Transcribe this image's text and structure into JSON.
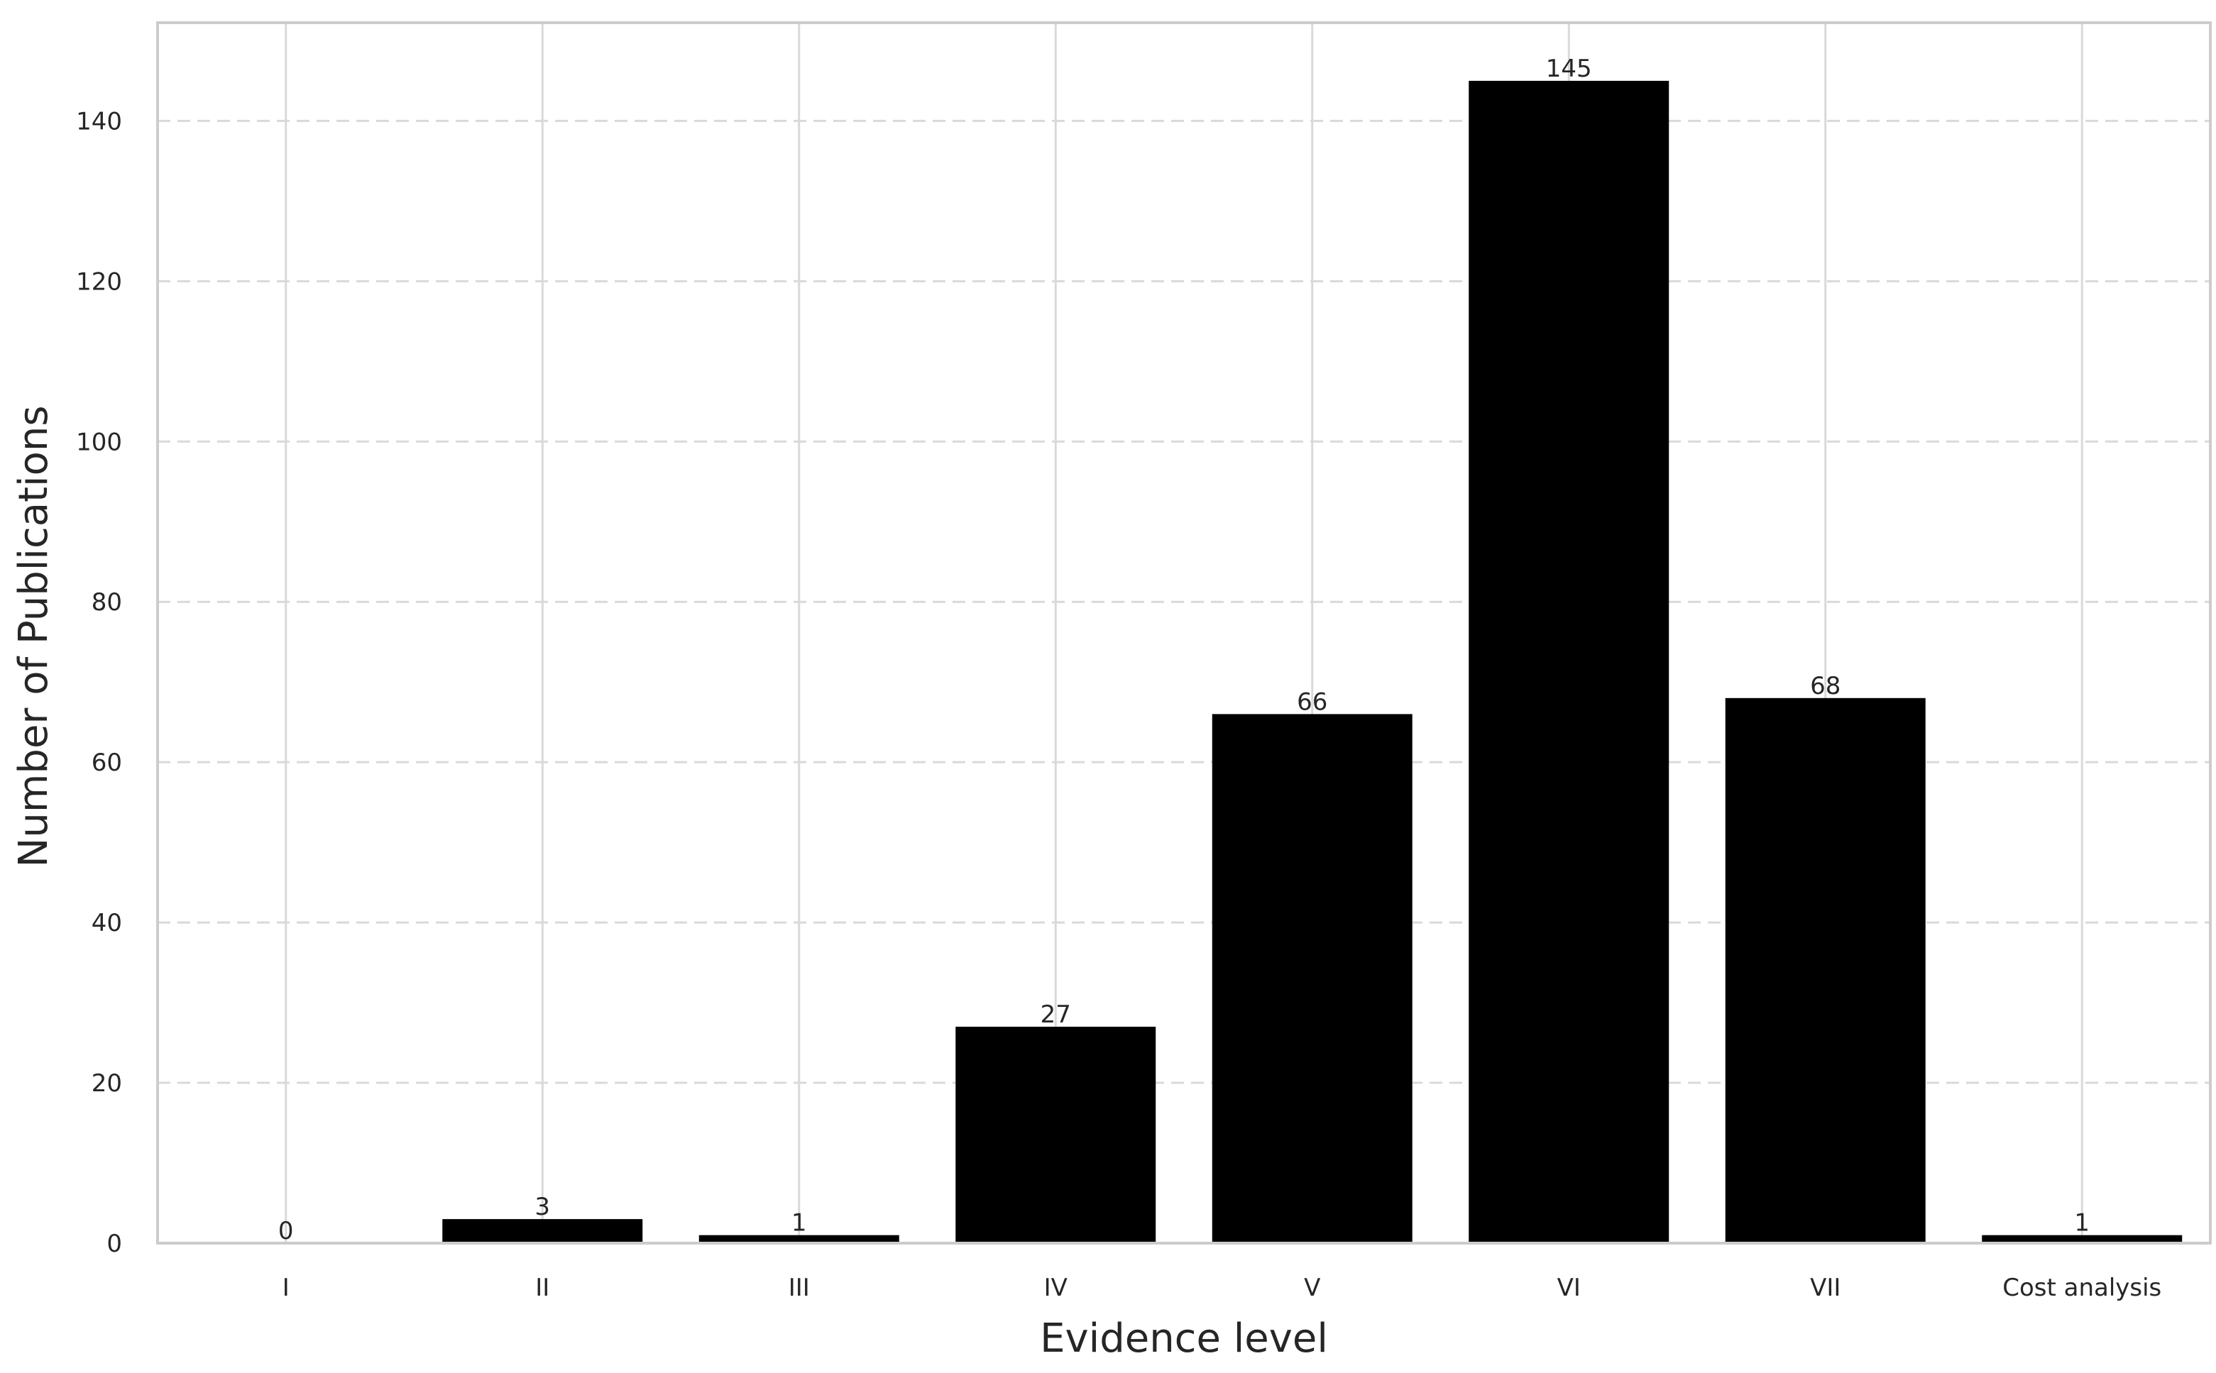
{
  "chart_data": {
    "type": "bar",
    "categories": [
      "I",
      "II",
      "III",
      "IV",
      "V",
      "VI",
      "VII",
      "Cost analysis"
    ],
    "values": [
      0,
      3,
      1,
      27,
      66,
      145,
      68,
      1
    ],
    "data_labels": [
      "0",
      "3",
      "1",
      "27",
      "66",
      "145",
      "68",
      "1"
    ],
    "xlabel": "Evidence level",
    "ylabel": "Number of Publications",
    "ylim": [
      0,
      152.25
    ],
    "yticks": [
      0,
      20,
      40,
      60,
      80,
      100,
      120,
      140
    ],
    "ytick_labels": [
      "0",
      "20",
      "40",
      "60",
      "80",
      "100",
      "120",
      "140"
    ],
    "grid": {
      "x": "solid",
      "y": "dashed"
    },
    "colors": {
      "bar": "#000000",
      "grid": "#d9d9d9",
      "frame": "#cccccc",
      "text": "#262626"
    }
  }
}
